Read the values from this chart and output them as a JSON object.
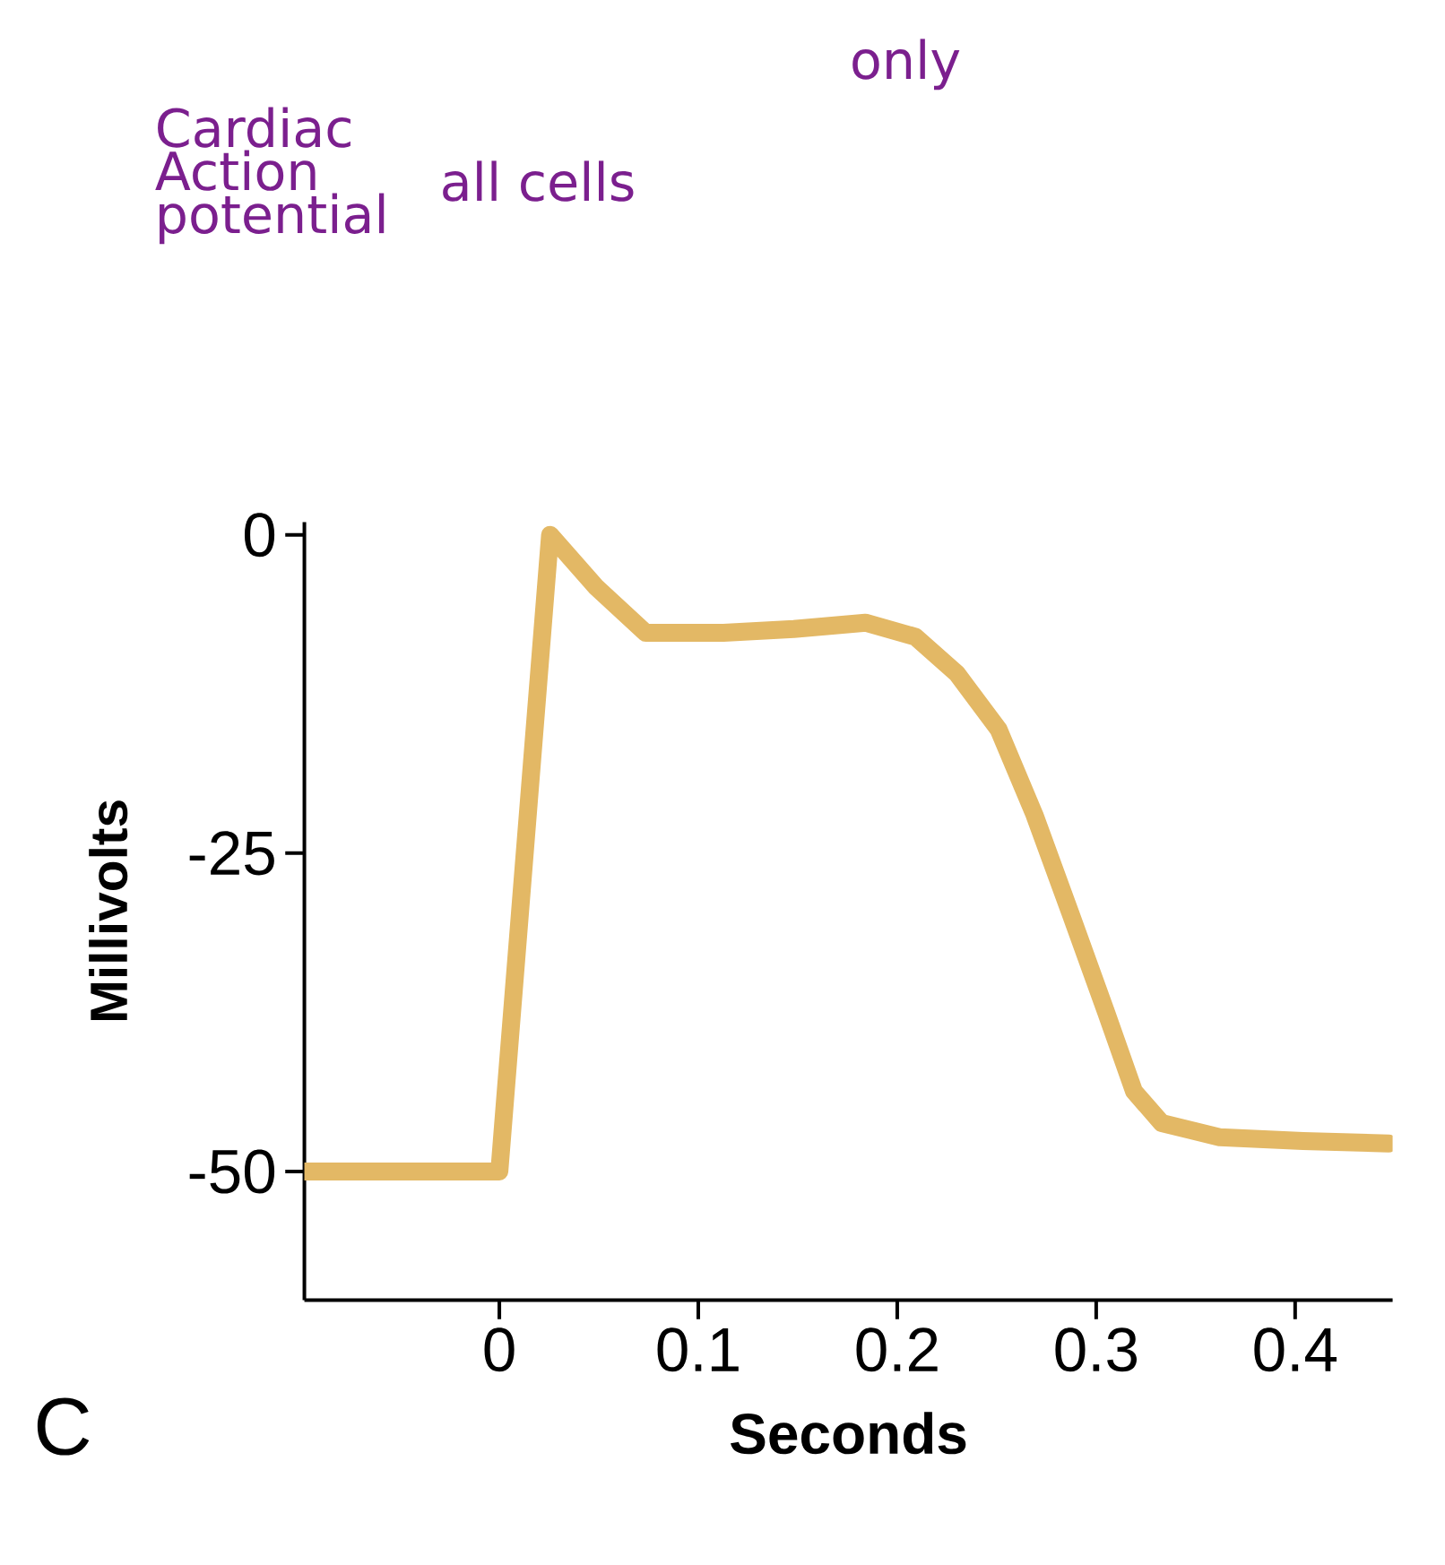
{
  "chart_data": {
    "type": "line",
    "xlabel": "Seconds",
    "ylabel": "Millivolts",
    "annotations": [
      "Cardiac Action potential",
      "all cells",
      "only",
      "C"
    ],
    "xlim": [
      -0.098,
      0.449
    ],
    "ylim": [
      -60.1,
      1
    ],
    "xticks": [
      0,
      0.1,
      0.2,
      0.3,
      0.4
    ],
    "yticks": [
      -50,
      -25,
      0
    ],
    "grid": false,
    "marker": "none",
    "line_style": "solid",
    "series": [
      {
        "color": "#e3b865",
        "x": [
          -0.098,
          0.0,
          0.0255,
          0.0486,
          0.0736,
          0.1126,
          0.148,
          0.184,
          0.209,
          0.23,
          0.251,
          0.269,
          0.287,
          0.305,
          0.319,
          0.333,
          0.362,
          0.404,
          0.447
        ],
        "values": [
          -50,
          -50,
          0,
          -4.1,
          -7.7,
          -7.7,
          -7.4,
          -6.9,
          -8.0,
          -10.9,
          -15.3,
          -22.0,
          -29.7,
          -37.5,
          -43.7,
          -46.2,
          -47.3,
          -47.6,
          -47.8
        ]
      }
    ]
  }
}
